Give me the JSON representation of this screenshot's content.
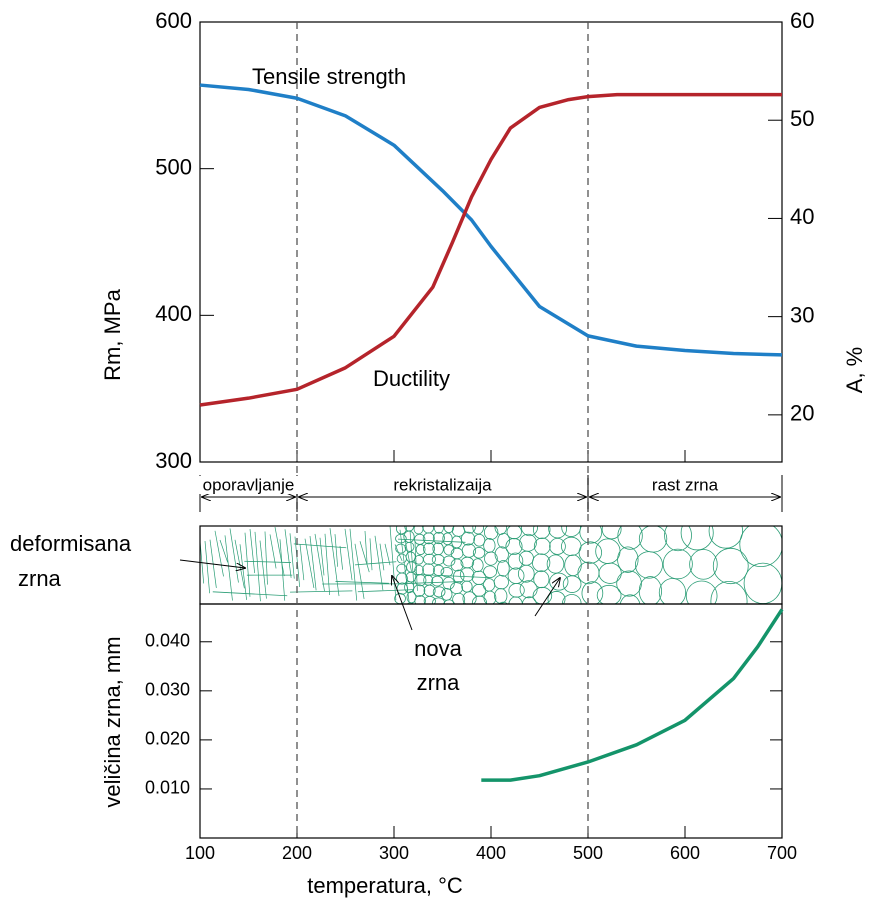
{
  "chart_data": [
    {
      "type": "line",
      "xlim": [
        100,
        700
      ],
      "xticks": [
        100,
        200,
        300,
        400,
        500,
        600,
        700
      ],
      "ylim": [
        300,
        600
      ],
      "yticks": [
        300,
        400,
        500,
        600
      ],
      "ylabel": "Rm, MPa",
      "y2lim": [
        15.2,
        60
      ],
      "y2ticks": [
        20,
        30,
        40,
        50,
        60
      ],
      "y2label": "A, %",
      "phase_boundaries": [
        200,
        500
      ],
      "regions": [
        "oporavljanje",
        "rekristalizaija",
        "rast zrna"
      ],
      "series": [
        {
          "name": "Tensile strength",
          "color": "#1f7fc7",
          "x": [
            100,
            150,
            200,
            250,
            300,
            350,
            380,
            400,
            450,
            500,
            550,
            600,
            650,
            700
          ],
          "values": [
            557,
            554,
            548,
            536,
            516,
            485,
            465,
            447,
            406,
            386,
            379,
            376,
            374,
            373
          ]
        },
        {
          "name": "Ductility",
          "color": "#b5242b",
          "axis": "y2",
          "x": [
            100,
            150,
            200,
            250,
            300,
            340,
            360,
            380,
            400,
            420,
            450,
            480,
            500,
            530,
            600,
            700
          ],
          "values": [
            21,
            21.7,
            22.6,
            24.8,
            28,
            33,
            37.5,
            42.2,
            46,
            49.2,
            51.3,
            52.1,
            52.4,
            52.6,
            52.6,
            52.6
          ]
        }
      ],
      "micro_labels": {
        "deformed": [
          "deformisana",
          "zrna"
        ],
        "new": [
          "nova",
          "zrna"
        ]
      }
    },
    {
      "type": "line",
      "xlim": [
        100,
        700
      ],
      "xticks": [
        100,
        200,
        300,
        400,
        500,
        600,
        700
      ],
      "xlabel": "temperatura, °C",
      "ylim": [
        0,
        0.0477
      ],
      "yticks": [
        {
          "value": 0.01,
          "label": "0.010"
        },
        {
          "value": 0.02,
          "label": "0.020"
        },
        {
          "value": 0.03,
          "label": "0.030"
        },
        {
          "value": 0.04,
          "label": "0.040"
        }
      ],
      "ylabel": "veličina zrna, mm",
      "series": [
        {
          "name": null,
          "color": "#14946a",
          "x": [
            390,
            420,
            450,
            500,
            550,
            600,
            650,
            675,
            700
          ],
          "values": [
            0.0118,
            0.0118,
            0.0127,
            0.0155,
            0.019,
            0.024,
            0.0325,
            0.039,
            0.0466
          ]
        }
      ]
    }
  ]
}
